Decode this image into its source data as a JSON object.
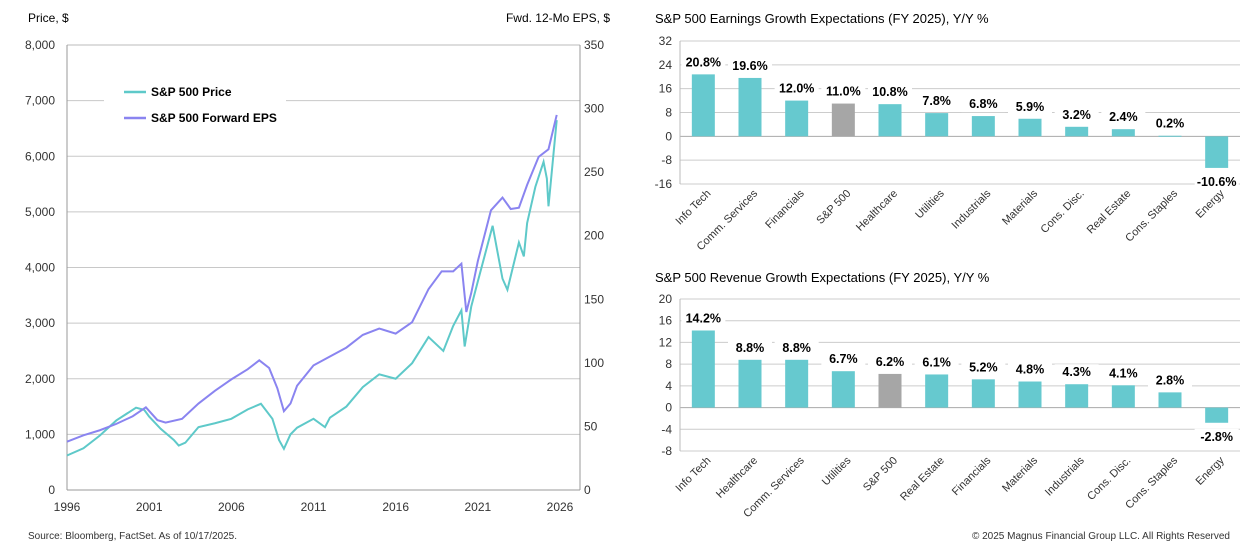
{
  "chart_data": [
    {
      "type": "line",
      "ylabel": "Price, $",
      "y2label": "Fwd. 12-Mo EPS, $",
      "ylim": [
        0,
        8000
      ],
      "y2lim": [
        0,
        350
      ],
      "yticks": [
        "0",
        "1,000",
        "2,000",
        "3,000",
        "4,000",
        "5,000",
        "6,000",
        "7,000",
        "8,000"
      ],
      "y2ticks": [
        "0",
        "50",
        "100",
        "150",
        "200",
        "250",
        "300",
        "350"
      ],
      "xticks": [
        "1996",
        "2001",
        "2006",
        "2011",
        "2016",
        "2021",
        "2026"
      ],
      "xlim": [
        1996,
        2026
      ],
      "grid": true,
      "legend": "top-left",
      "series": [
        {
          "name": "S&P 500 Price",
          "axis": "left",
          "color": "#5ec9c9",
          "points": [
            [
              1996,
              620
            ],
            [
              1997,
              750
            ],
            [
              1998,
              980
            ],
            [
              1999,
              1250
            ],
            [
              2000.2,
              1480
            ],
            [
              2000.7,
              1440
            ],
            [
              2001,
              1320
            ],
            [
              2001.7,
              1100
            ],
            [
              2002.5,
              900
            ],
            [
              2002.8,
              800
            ],
            [
              2003.2,
              850
            ],
            [
              2004,
              1130
            ],
            [
              2005,
              1200
            ],
            [
              2006,
              1280
            ],
            [
              2007,
              1450
            ],
            [
              2007.8,
              1550
            ],
            [
              2008.5,
              1280
            ],
            [
              2008.9,
              900
            ],
            [
              2009.2,
              740
            ],
            [
              2009.6,
              1000
            ],
            [
              2010,
              1120
            ],
            [
              2011,
              1280
            ],
            [
              2011.7,
              1130
            ],
            [
              2012,
              1300
            ],
            [
              2013,
              1500
            ],
            [
              2014,
              1850
            ],
            [
              2015,
              2080
            ],
            [
              2016,
              2000
            ],
            [
              2017,
              2280
            ],
            [
              2018,
              2750
            ],
            [
              2018.9,
              2500
            ],
            [
              2019.5,
              2950
            ],
            [
              2020,
              3230
            ],
            [
              2020.2,
              2580
            ],
            [
              2020.6,
              3300
            ],
            [
              2021,
              3750
            ],
            [
              2021.9,
              4750
            ],
            [
              2022.5,
              3800
            ],
            [
              2022.8,
              3600
            ],
            [
              2023.5,
              4450
            ],
            [
              2023.8,
              4200
            ],
            [
              2024,
              4800
            ],
            [
              2024.5,
              5450
            ],
            [
              2025,
              5900
            ],
            [
              2025.2,
              5600
            ],
            [
              2025.3,
              5100
            ],
            [
              2025.8,
              6650
            ]
          ]
        },
        {
          "name": "S&P 500 Forward EPS",
          "axis": "right",
          "color": "#8a84f0",
          "points": [
            [
              1996,
              38
            ],
            [
              1997,
              43
            ],
            [
              1998,
              47
            ],
            [
              1999,
              52
            ],
            [
              2000,
              58
            ],
            [
              2000.8,
              65
            ],
            [
              2001.5,
              55
            ],
            [
              2002,
              53
            ],
            [
              2003,
              56
            ],
            [
              2004,
              68
            ],
            [
              2005,
              78
            ],
            [
              2006,
              87
            ],
            [
              2007,
              95
            ],
            [
              2007.7,
              102
            ],
            [
              2008.3,
              96
            ],
            [
              2008.8,
              80
            ],
            [
              2009.2,
              62
            ],
            [
              2009.6,
              68
            ],
            [
              2010,
              82
            ],
            [
              2011,
              98
            ],
            [
              2012,
              105
            ],
            [
              2013,
              112
            ],
            [
              2014,
              122
            ],
            [
              2015,
              127
            ],
            [
              2016,
              123
            ],
            [
              2017,
              132
            ],
            [
              2018,
              158
            ],
            [
              2018.8,
              172
            ],
            [
              2019.5,
              172
            ],
            [
              2020,
              178
            ],
            [
              2020.3,
              140
            ],
            [
              2020.6,
              155
            ],
            [
              2021,
              180
            ],
            [
              2021.8,
              220
            ],
            [
              2022.5,
              230
            ],
            [
              2023,
              221
            ],
            [
              2023.5,
              222
            ],
            [
              2024,
              240
            ],
            [
              2024.7,
              262
            ],
            [
              2025.3,
              268
            ],
            [
              2025.8,
              295
            ]
          ]
        }
      ]
    },
    {
      "type": "bar",
      "title": "S&P 500 Earnings Growth Expectations (FY 2025), Y/Y %",
      "ylim": [
        -16,
        32
      ],
      "yticks": [
        "-16",
        "-8",
        "0",
        "8",
        "16",
        "24",
        "32"
      ],
      "categories": [
        "Info Tech",
        "Comm. Services",
        "Financials",
        "S&P 500",
        "Healthcare",
        "Utilities",
        "Industrials",
        "Materials",
        "Cons. Disc.",
        "Real Estate",
        "Cons. Staples",
        "Energy"
      ],
      "values": [
        20.8,
        19.6,
        12.0,
        11.0,
        10.8,
        7.8,
        6.8,
        5.9,
        3.2,
        2.4,
        0.2,
        -10.6
      ],
      "labels": [
        "20.8%",
        "19.6%",
        "12.0%",
        "11.0%",
        "10.8%",
        "7.8%",
        "6.8%",
        "5.9%",
        "3.2%",
        "2.4%",
        "0.2%",
        "-10.6%"
      ]
    },
    {
      "type": "bar",
      "title": "S&P 500 Revenue Growth Expectations (FY 2025), Y/Y %",
      "ylim": [
        -8,
        20
      ],
      "yticks": [
        "-8",
        "-4",
        "0",
        "4",
        "8",
        "12",
        "16",
        "20"
      ],
      "categories": [
        "Info Tech",
        "Healthcare",
        "Comm. Services",
        "Utilities",
        "S&P 500",
        "Real Estate",
        "Financials",
        "Materials",
        "Industrials",
        "Cons. Disc.",
        "Cons. Staples",
        "Energy"
      ],
      "values": [
        14.2,
        8.8,
        8.8,
        6.7,
        6.2,
        6.1,
        5.2,
        4.8,
        4.3,
        4.1,
        2.8,
        -2.8
      ],
      "labels": [
        "14.2%",
        "8.8%",
        "8.8%",
        "6.7%",
        "6.2%",
        "6.1%",
        "5.2%",
        "4.8%",
        "4.3%",
        "4.1%",
        "2.8%",
        "-2.8%"
      ]
    }
  ],
  "colors": {
    "sector": "#66c9cf",
    "index": "#a6a6a6",
    "price": "#5ec9c9",
    "eps": "#8a84f0"
  },
  "footer": {
    "source": "Source: Bloomberg, FactSet. As of 10/17/2025.",
    "copyright": "© 2025 Magnus Financial Group LLC. All Rights Reserved"
  }
}
